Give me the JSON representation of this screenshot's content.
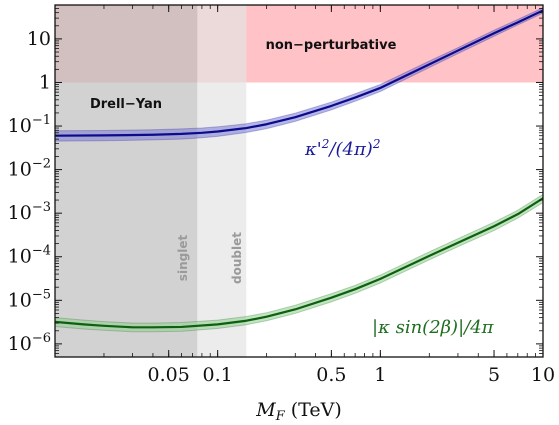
{
  "chart_data": {
    "type": "line",
    "title": "",
    "xlabel": "M_F (TeV)",
    "ylabel": "",
    "x_scale": "log",
    "y_scale": "log",
    "xlim": [
      0.01,
      10
    ],
    "ylim": [
      5e-07,
      60
    ],
    "x_ticks": [
      {
        "value": 0.05,
        "label": "0.05"
      },
      {
        "value": 0.1,
        "label": "0.1"
      },
      {
        "value": 0.5,
        "label": "0.5"
      },
      {
        "value": 1,
        "label": "1"
      },
      {
        "value": 5,
        "label": "5"
      },
      {
        "value": 10,
        "label": "10"
      }
    ],
    "y_ticks": [
      {
        "value": 1e-06,
        "base": "10",
        "exp": "−6"
      },
      {
        "value": 1e-05,
        "base": "10",
        "exp": "−5"
      },
      {
        "value": 0.0001,
        "base": "10",
        "exp": "−4"
      },
      {
        "value": 0.001,
        "base": "10",
        "exp": "−3"
      },
      {
        "value": 0.01,
        "base": "10",
        "exp": "−2"
      },
      {
        "value": 0.1,
        "base": "10",
        "exp": "−1"
      },
      {
        "value": 1,
        "base": "1",
        "exp": ""
      },
      {
        "value": 10,
        "base": "10",
        "exp": ""
      }
    ],
    "regions": [
      {
        "name": "non-perturbative",
        "label": "non−perturbative",
        "y_from": 1,
        "y_to": 60,
        "color": "#ff9aa0"
      },
      {
        "name": "drell-yan",
        "label": "Drell−Yan",
        "x_from": 0.01,
        "x_to": 0.075,
        "color": "#bfbfbf"
      },
      {
        "name": "singlet",
        "label": "singlet",
        "x_from": 0.075,
        "x_to": 0.15,
        "color": "#e4e4e4"
      },
      {
        "name": "doublet",
        "label": "doublet",
        "x_from": 0.075,
        "x_to": 0.15,
        "color": "#e4e4e4"
      }
    ],
    "series": [
      {
        "name": "κ'^2/(4π)^2",
        "color": "#0b0b8c",
        "band_color": "#7a7ad6",
        "x": [
          0.01,
          0.02,
          0.04,
          0.06,
          0.08,
          0.1,
          0.15,
          0.2,
          0.3,
          0.5,
          0.7,
          1,
          2,
          3,
          5,
          7,
          10
        ],
        "y": [
          0.06,
          0.061,
          0.063,
          0.066,
          0.07,
          0.075,
          0.09,
          0.11,
          0.16,
          0.29,
          0.45,
          0.75,
          2.6,
          5.4,
          13.5,
          24,
          45
        ],
        "y_low": [
          0.045,
          0.046,
          0.048,
          0.05,
          0.054,
          0.058,
          0.071,
          0.087,
          0.128,
          0.235,
          0.37,
          0.62,
          2.2,
          4.6,
          11.5,
          21,
          39
        ],
        "y_high": [
          0.078,
          0.079,
          0.082,
          0.086,
          0.09,
          0.096,
          0.113,
          0.137,
          0.198,
          0.355,
          0.55,
          0.9,
          3.1,
          6.3,
          15.8,
          28,
          52
        ]
      },
      {
        "name": "|κ sin(2β)|/4π",
        "color": "#0d600d",
        "band_color": "#8fce8f",
        "x": [
          0.01,
          0.015,
          0.02,
          0.03,
          0.04,
          0.06,
          0.1,
          0.15,
          0.2,
          0.3,
          0.5,
          0.7,
          1,
          2,
          3,
          5,
          7,
          10
        ],
        "y": [
          3.2e-06,
          2.8e-06,
          2.6e-06,
          2.4e-06,
          2.4e-06,
          2.45e-06,
          2.8e-06,
          3.4e-06,
          4.2e-06,
          6.2e-06,
          1.15e-05,
          1.8e-05,
          3.1e-05,
          0.000105,
          0.00021,
          0.0005,
          0.00095,
          0.0022
        ],
        "y_low": [
          2.5e-06,
          2.2e-06,
          2.05e-06,
          1.9e-06,
          1.9e-06,
          1.95e-06,
          2.25e-06,
          2.75e-06,
          3.4e-06,
          5e-06,
          9.2e-06,
          1.45e-05,
          2.5e-05,
          8.5e-05,
          0.00017,
          0.0004,
          0.00077,
          0.00175
        ],
        "y_high": [
          4e-06,
          3.5e-06,
          3.25e-06,
          3e-06,
          3e-06,
          3.1e-06,
          3.5e-06,
          4.25e-06,
          5.2e-06,
          7.7e-06,
          1.42e-05,
          2.2e-05,
          3.8e-05,
          0.00013,
          0.00026,
          0.00062,
          0.00117,
          0.0027
        ]
      }
    ],
    "curve_labels": {
      "blue": {
        "pre": "κ'",
        "sup1": "2",
        "mid": "/(4π)",
        "sup2": "2"
      },
      "green": {
        "text": "|κ sin(2β)|/4π"
      }
    }
  }
}
